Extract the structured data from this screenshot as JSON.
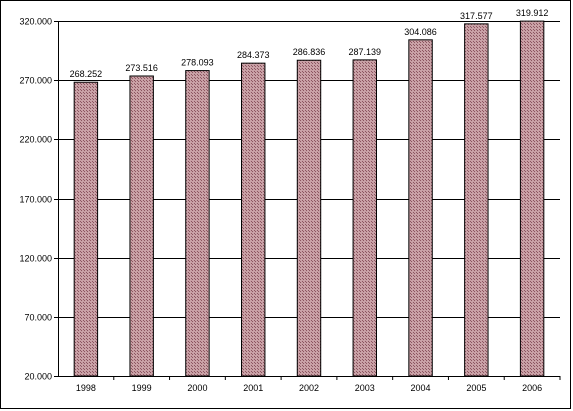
{
  "chart_data": {
    "type": "bar",
    "title": "",
    "xlabel": "",
    "ylabel": "",
    "categories": [
      "1998",
      "1999",
      "2000",
      "2001",
      "2002",
      "2003",
      "2004",
      "2005",
      "2006"
    ],
    "values": [
      268252,
      273516,
      278093,
      284373,
      286836,
      287139,
      304086,
      317577,
      319912
    ],
    "value_labels": [
      "268.252",
      "273.516",
      "278.093",
      "284.373",
      "286.836",
      "287.139",
      "304.086",
      "317.577",
      "319.912"
    ],
    "ylim": [
      20000,
      320000
    ],
    "yticks": [
      20000,
      70000,
      120000,
      170000,
      220000,
      270000,
      320000
    ],
    "ytick_labels": [
      "20.000",
      "70.000",
      "120.000",
      "170.000",
      "220.000",
      "270.000",
      "320.000"
    ],
    "grid": true,
    "legend": "none",
    "colors": {
      "bar_fill": "#c9a1a6",
      "bar_hatch": "#8c5560",
      "bar_stroke": "#000000",
      "grid": "#000000"
    }
  }
}
